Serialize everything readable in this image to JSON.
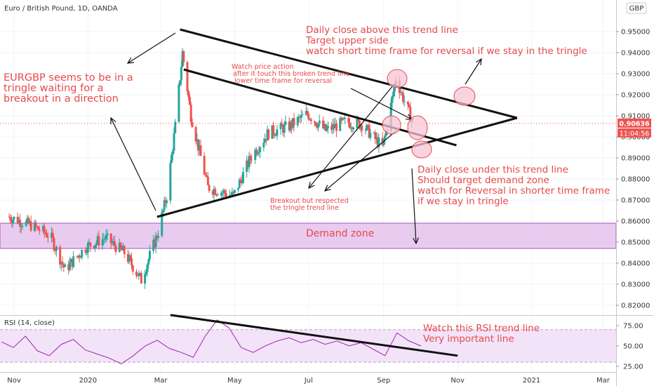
{
  "header": {
    "title": "Euro / British Pound, 1D, OANDA",
    "currency": "GBP",
    "gear_icon": "gear-icon"
  },
  "price_tags": {
    "last_price": "0.90636",
    "countdown": "11:04:56"
  },
  "annotations": {
    "left_note": [
      "EURGBP seems to be in a",
      "tringle waiting for a",
      "breakout in a direction"
    ],
    "top_note": [
      "Daily close above this trend line",
      "Target upper side",
      "watch short time frame for reversal if we stay in the tringle"
    ],
    "middle_note": [
      "Watch price action",
      "after it touch this broken trend line",
      "lower time frame for reversal"
    ],
    "bottom_right_note": [
      "Daily close under this trend line",
      "Should target demand zone",
      "watch for Reversal in shorter time frame",
      "if we stay in tringle"
    ],
    "breakout_note": [
      "Breakout but respected",
      "the tringle trend line"
    ],
    "demand_zone": "Demand zone",
    "rsi_note": [
      "Watch this RSI trend line",
      "Very important line"
    ]
  },
  "rsi_panel": {
    "label": "RSI (14, close)",
    "ticks": [
      "75.00",
      "50.00",
      "25.00"
    ]
  },
  "colors": {
    "up": "#26a69a",
    "down": "#ef5350",
    "annotation": "#e8484a",
    "demand_zone": "#e7c6ef",
    "rsi_line": "#9c27b0",
    "rsi_band": "#f3e3f8"
  },
  "chart_data": [
    {
      "type": "candlestick",
      "title": "Euro / British Pound, 1D, OANDA",
      "x_ticks": [
        "Nov",
        "2020",
        "Mar",
        "May",
        "Jul",
        "Sep",
        "Nov",
        "2021",
        "Mar"
      ],
      "y_ticks": [
        0.82,
        0.83,
        0.84,
        0.85,
        0.86,
        0.87,
        0.88,
        0.89,
        0.9,
        0.91,
        0.92,
        0.93,
        0.94,
        0.95
      ],
      "ylim": [
        0.815,
        0.962
      ],
      "close_path": [
        [
          "2019-10-28",
          0.862
        ],
        [
          "2019-11-15",
          0.858
        ],
        [
          "2019-12-01",
          0.853
        ],
        [
          "2019-12-13",
          0.837
        ],
        [
          "2019-12-31",
          0.848
        ],
        [
          "2020-01-15",
          0.852
        ],
        [
          "2020-01-31",
          0.845
        ],
        [
          "2020-02-14",
          0.832
        ],
        [
          "2020-02-28",
          0.855
        ],
        [
          "2020-03-06",
          0.872
        ],
        [
          "2020-03-13",
          0.905
        ],
        [
          "2020-03-19",
          0.94
        ],
        [
          "2020-03-26",
          0.91
        ],
        [
          "2020-04-09",
          0.876
        ],
        [
          "2020-04-30",
          0.872
        ],
        [
          "2020-05-15",
          0.891
        ],
        [
          "2020-05-29",
          0.902
        ],
        [
          "2020-06-15",
          0.905
        ],
        [
          "2020-06-30",
          0.911
        ],
        [
          "2020-07-15",
          0.903
        ],
        [
          "2020-07-31",
          0.907
        ],
        [
          "2020-08-14",
          0.906
        ],
        [
          "2020-08-31",
          0.895
        ],
        [
          "2020-09-04",
          0.905
        ],
        [
          "2020-09-11",
          0.928
        ],
        [
          "2020-09-18",
          0.917
        ],
        [
          "2020-09-25",
          0.907
        ]
      ],
      "last_price": 0.90636,
      "demand_zone": [
        0.847,
        0.859
      ],
      "trend_lines": [
        {
          "from": [
            "2020-03-17",
            0.951
          ],
          "to": [
            "2020-12-20",
            0.909
          ]
        },
        {
          "from": [
            "2020-03-20",
            0.932
          ],
          "to": [
            "2020-10-31",
            0.896
          ]
        },
        {
          "from": [
            "2020-02-27",
            0.862
          ],
          "to": [
            "2020-12-20",
            0.909
          ]
        }
      ]
    },
    {
      "type": "line",
      "title": "RSI (14, close)",
      "y_ticks": [
        25,
        50,
        75
      ],
      "ylim": [
        18,
        87
      ],
      "band": [
        30,
        70
      ],
      "values": [
        55,
        48,
        62,
        44,
        38,
        52,
        58,
        45,
        40,
        35,
        28,
        38,
        50,
        57,
        47,
        42,
        36,
        62,
        82,
        72,
        48,
        42,
        50,
        56,
        60,
        54,
        58,
        52,
        56,
        50,
        54,
        46,
        38,
        66,
        56,
        50
      ],
      "trend_line": {
        "from": [
          "2020-03-09",
          88
        ],
        "to": [
          "2020-11-01",
          38
        ]
      }
    }
  ]
}
